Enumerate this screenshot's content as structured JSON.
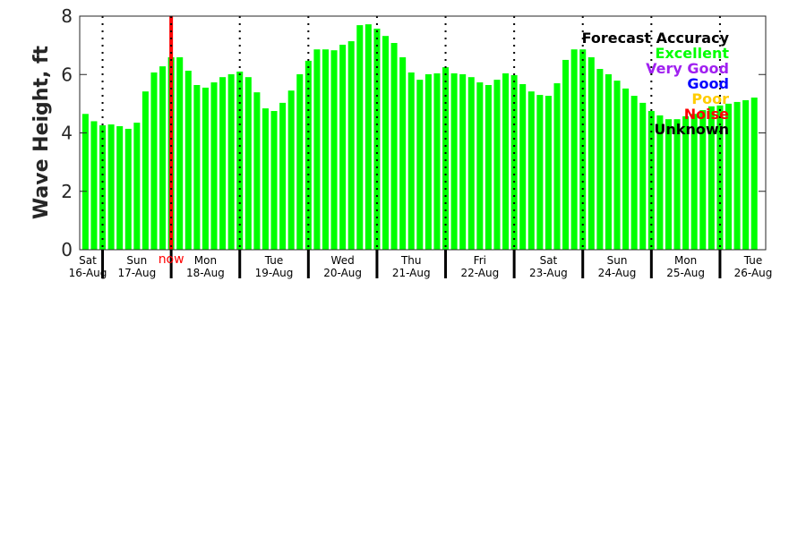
{
  "chart_data": {
    "type": "bar",
    "title": "",
    "xlabel": "",
    "ylabel": "Wave Height, ft",
    "ylim": [
      0,
      8
    ],
    "yticks": [
      "0",
      "2",
      "4",
      "6",
      "8"
    ],
    "x_unit": "hours since Sat 16-Aug 00:00",
    "xlim": [
      16,
      256
    ],
    "bar_start_hour": 18,
    "bar_step_hours": 3,
    "values": [
      4.65,
      4.4,
      4.26,
      4.29,
      4.23,
      4.14,
      4.35,
      5.42,
      6.07,
      6.28,
      6.59,
      6.59,
      6.13,
      5.64,
      5.55,
      5.73,
      5.91,
      6.01,
      6.1,
      5.91,
      5.39,
      4.84,
      4.75,
      5.03,
      5.45,
      6.01,
      6.47,
      6.86,
      6.86,
      6.83,
      7.02,
      7.14,
      7.69,
      7.72,
      7.57,
      7.32,
      7.08,
      6.59,
      6.07,
      5.82,
      6.01,
      6.04,
      6.25,
      6.04,
      6.01,
      5.91,
      5.73,
      5.64,
      5.82,
      6.04,
      5.98,
      5.67,
      5.42,
      5.3,
      5.27,
      5.7,
      6.5,
      6.86,
      6.86,
      6.59,
      6.19,
      6.01,
      5.79,
      5.52,
      5.27,
      5.03,
      4.75,
      4.6,
      4.47,
      4.47,
      4.57,
      4.65,
      4.78,
      4.91,
      4.94,
      5.0,
      5.06,
      5.12,
      5.21
    ],
    "bar_color": "#00ff00",
    "days": [
      {
        "day": "Sat",
        "date": "16-Aug"
      },
      {
        "day": "Sun",
        "date": "17-Aug"
      },
      {
        "day": "Mon",
        "date": "18-Aug"
      },
      {
        "day": "Tue",
        "date": "19-Aug"
      },
      {
        "day": "Wed",
        "date": "20-Aug"
      },
      {
        "day": "Thu",
        "date": "21-Aug"
      },
      {
        "day": "Fri",
        "date": "22-Aug"
      },
      {
        "day": "Sat",
        "date": "23-Aug"
      },
      {
        "day": "Sun",
        "date": "24-Aug"
      },
      {
        "day": "Mon",
        "date": "25-Aug"
      },
      {
        "day": "Tue",
        "date": "26-Aug"
      }
    ],
    "now": {
      "label": "now",
      "hour": 48,
      "color": "#ff0000"
    },
    "legend": {
      "title": "Forecast Accuracy",
      "placement": "top-right",
      "entries": [
        {
          "label": "Excellent",
          "color": "#00ff00"
        },
        {
          "label": "Very Good",
          "color": "#a020f0"
        },
        {
          "label": "Good",
          "color": "#0000ff"
        },
        {
          "label": "Poor",
          "color": "#ffcc00"
        },
        {
          "label": "Noise",
          "color": "#ff0000"
        },
        {
          "label": "Unknown",
          "color": "#000000"
        }
      ]
    }
  }
}
